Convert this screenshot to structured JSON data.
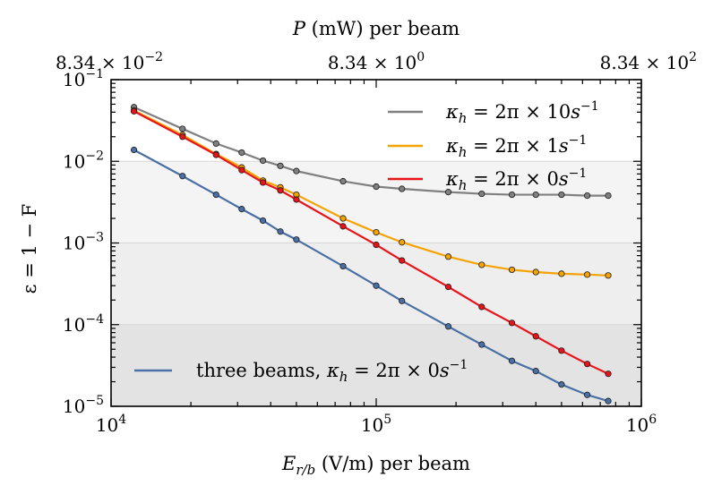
{
  "chart_data": {
    "type": "line",
    "xscale": "log",
    "yscale": "log",
    "xlim": [
      10000,
      1000000
    ],
    "ylim": [
      1e-05,
      0.1
    ],
    "xlabel": "E_{r/b} (V/m) per beam",
    "xlabel_main": "E",
    "xlabel_sub": "r/b",
    "xlabel_rest": " (V/m) per beam",
    "ylabel": "ε = 1 − F",
    "top_axis_label": "P (mW) per beam",
    "top_axis_label_main": "P",
    "top_axis_label_rest": " (mW) per beam",
    "top_ticks": [
      {
        "x": 10000,
        "mant": "8.34 × 10",
        "exp": "−2"
      },
      {
        "x": 100000,
        "mant": "8.34 × 10",
        "exp": "0"
      },
      {
        "x": 1000000,
        "mant": "8.34 × 10",
        "exp": "2"
      }
    ],
    "x_ticks": [
      {
        "x": 10000,
        "base": "10",
        "exp": "4"
      },
      {
        "x": 100000,
        "base": "10",
        "exp": "5"
      },
      {
        "x": 1000000,
        "base": "10",
        "exp": "6"
      }
    ],
    "y_ticks": [
      {
        "y": 1e-05,
        "base": "10",
        "exp": "−5"
      },
      {
        "y": 0.0001,
        "base": "10",
        "exp": "−4"
      },
      {
        "y": 0.001,
        "base": "10",
        "exp": "−3"
      },
      {
        "y": 0.01,
        "base": "10",
        "exp": "−2"
      },
      {
        "y": 0.1,
        "base": "10",
        "exp": "−1"
      }
    ],
    "shaded_bands": [
      {
        "y_min": 1e-05,
        "y_max": 0.0001,
        "color": "#e3e3e3"
      },
      {
        "y_min": 0.0001,
        "y_max": 0.001,
        "color": "#eeeeee"
      },
      {
        "y_min": 0.001,
        "y_max": 0.01,
        "color": "#f4f4f4"
      }
    ],
    "x": [
      12200,
      18600,
      24900,
      31100,
      37400,
      43500,
      50000,
      75000,
      100000,
      125000,
      187000,
      250000,
      325000,
      400000,
      500000,
      625000,
      750000
    ],
    "series": [
      {
        "name": "κ_h = 2π × 10s^−1",
        "kappa_value": "10",
        "color": "#808080",
        "values": [
          0.046,
          0.025,
          0.0165,
          0.0128,
          0.0102,
          0.0088,
          0.0076,
          0.0057,
          0.0049,
          0.0046,
          0.0042,
          0.004,
          0.0039,
          0.0039,
          0.0039,
          0.0038,
          0.0038
        ]
      },
      {
        "name": "κ_h = 2π × 1s^−1",
        "kappa_value": "1",
        "color": "#f5a300",
        "values": [
          0.042,
          0.021,
          0.0123,
          0.0084,
          0.0058,
          0.0048,
          0.0039,
          0.002,
          0.00135,
          0.00102,
          0.00068,
          0.00054,
          0.00047,
          0.00044,
          0.00042,
          0.00041,
          0.0004
        ]
      },
      {
        "name": "κ_h = 2π × 0s^−1",
        "kappa_value": "0",
        "color": "#e8141a",
        "values": [
          0.041,
          0.02,
          0.012,
          0.0078,
          0.0055,
          0.0044,
          0.0034,
          0.0016,
          0.00095,
          0.00061,
          0.00029,
          0.000165,
          0.000105,
          7.2e-05,
          4.8e-05,
          3.3e-05,
          2.5e-05
        ]
      },
      {
        "name": "three beams, κ_h = 2π × 0s^−1",
        "kappa_value": "0",
        "prefix": "three beams, ",
        "color": "#4a6fa5",
        "values": [
          0.0138,
          0.0066,
          0.0039,
          0.0026,
          0.00188,
          0.00138,
          0.0011,
          0.00052,
          0.0003,
          0.000195,
          9.5e-05,
          5.7e-05,
          3.6e-05,
          2.7e-05,
          1.85e-05,
          1.38e-05,
          1.16e-05
        ]
      }
    ],
    "legend_upper": "top-right",
    "legend_lower": "bottom-left"
  }
}
